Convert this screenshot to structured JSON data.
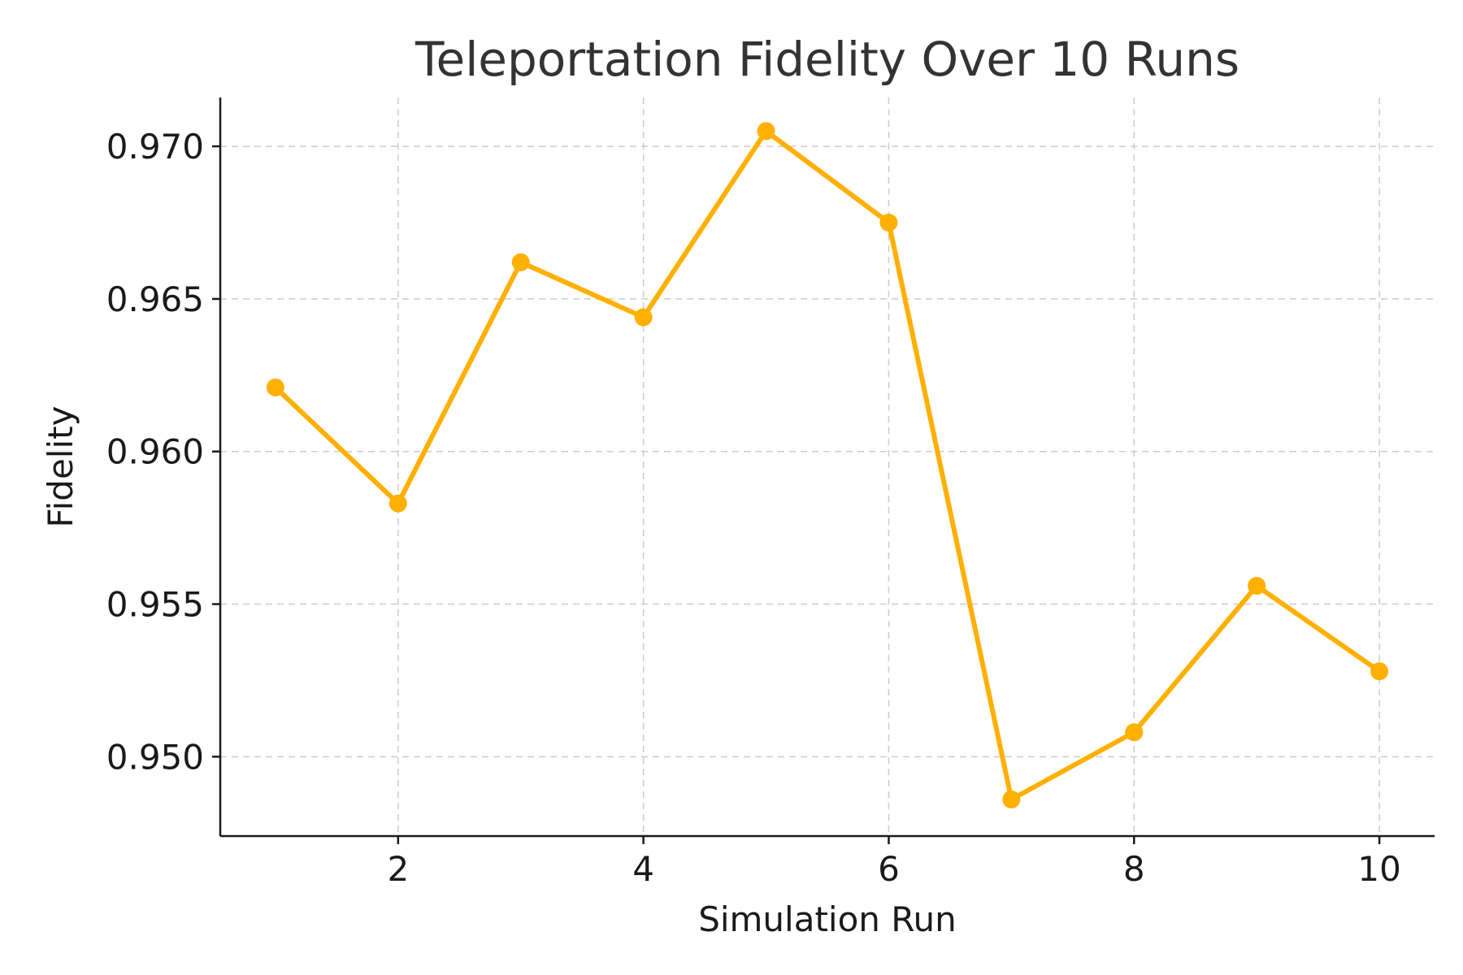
{
  "chart_data": {
    "type": "line",
    "title": "Teleportation Fidelity Over 10 Runs",
    "xlabel": "Simulation Run",
    "ylabel": "Fidelity",
    "xlim": [
      0.55,
      10.45
    ],
    "ylim": [
      0.9474,
      0.9716
    ],
    "xticks": [
      2,
      4,
      6,
      8,
      10
    ],
    "xtick_labels": [
      "2",
      "4",
      "6",
      "8",
      "10"
    ],
    "yticks": [
      0.95,
      0.955,
      0.96,
      0.965,
      0.97
    ],
    "ytick_labels": [
      "0.950",
      "0.955",
      "0.960",
      "0.965",
      "0.970"
    ],
    "grid": true,
    "series": [
      {
        "color": "#FFB000",
        "marker": "circle",
        "x": [
          1,
          2,
          3,
          4,
          5,
          6,
          7,
          8,
          9,
          10
        ],
        "values": [
          0.9621,
          0.9583,
          0.9662,
          0.9644,
          0.9705,
          0.9675,
          0.9486,
          0.9508,
          0.9556,
          0.9528
        ]
      }
    ]
  }
}
